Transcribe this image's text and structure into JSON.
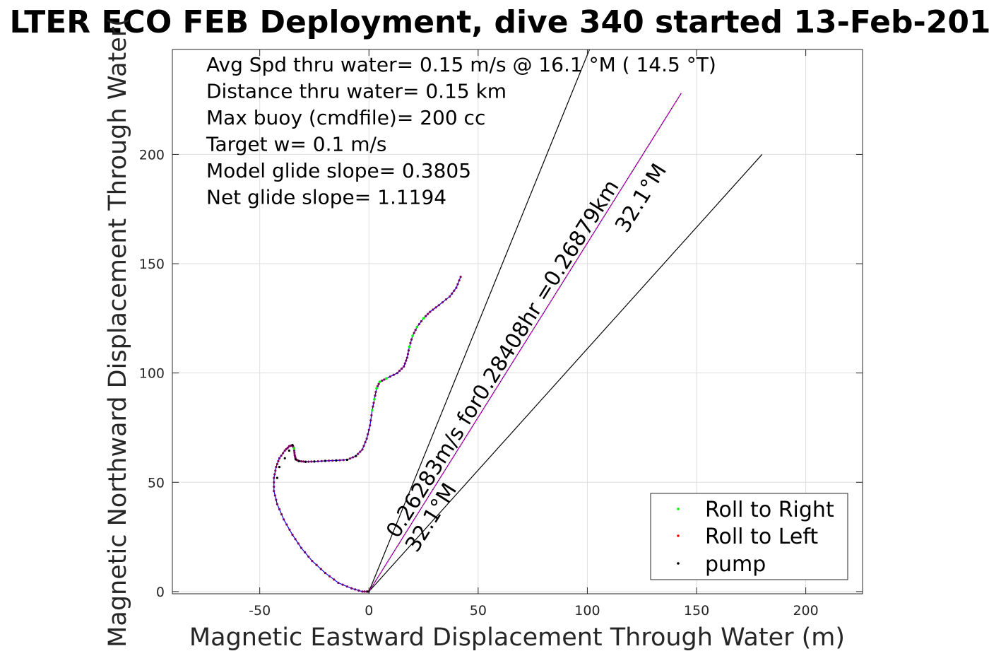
{
  "chart_data": {
    "type": "line",
    "title": "LTER ECO FEB Deployment, dive 340 started 13-Feb-201",
    "xlabel": "Magnetic Eastward Displacement Through Water (m)",
    "ylabel": "Magnetic Northward Displacement Through Water(",
    "xlim": [
      -90,
      226
    ],
    "ylim": [
      -1,
      248
    ],
    "x_ticks": [
      -50,
      0,
      50,
      100,
      150,
      200
    ],
    "y_ticks": [
      0,
      50,
      100,
      150,
      200
    ],
    "x_tick_labels": [
      "-50",
      "0",
      "50",
      "100",
      "150",
      "200"
    ],
    "y_tick_labels": [
      "0",
      "50",
      "100",
      "150",
      "200"
    ],
    "grid": true,
    "annotations": [
      "Avg Spd thru water=  0.15 m/s @  16.1 °M ( 14.5 °T)",
      "Distance thru water=  0.15 km",
      "Max buoy (cmdfile)= 200 cc",
      "Target w= 0.1 m/s",
      "Model glide slope= 0.3805",
      "Net glide slope= 1.1194"
    ],
    "current_label": "0.26283m/s for0.28408hr =0.26879km",
    "heading_label_upper": "32.1°M",
    "heading_label_lower": "32.1°M",
    "legend": {
      "position": "bottom-right",
      "entries": [
        {
          "name": "Roll to Right",
          "color": "#00ff00"
        },
        {
          "name": "Roll to Left",
          "color": "#ff0000"
        },
        {
          "name": "pump",
          "color": "#000000"
        }
      ]
    },
    "colors": {
      "track_line": "#0000ff",
      "track_points": "#7a0060",
      "current_vector": "#ff00ff",
      "cone_lines": "#000000",
      "roll_right": "#00ff00",
      "roll_left": "#ff0000",
      "pump": "#000000"
    },
    "cone_lines": [
      {
        "name": "cone-left",
        "x": [
          0,
          101
        ],
        "y": [
          0,
          248
        ]
      },
      {
        "name": "cone-center",
        "x": [
          0,
          143
        ],
        "y": [
          0,
          228
        ]
      },
      {
        "name": "cone-right",
        "x": [
          0,
          180
        ],
        "y": [
          0,
          200
        ]
      }
    ],
    "track": {
      "x": [
        0,
        -3,
        -8,
        -14,
        -20,
        -26,
        -31,
        -35,
        -39,
        -42,
        -43.5,
        -43.5,
        -42.5,
        -41,
        -38.5,
        -36.5,
        -35,
        -34.3,
        -34,
        -33.5,
        -32,
        -29,
        -25,
        -20,
        -15,
        -10,
        -6,
        -3,
        -1,
        0.5,
        1.5,
        2.5,
        3.5,
        5,
        8,
        13,
        16,
        17.5,
        18.5,
        20,
        22,
        25,
        28,
        32,
        37,
        40,
        42
      ],
      "y": [
        0,
        0,
        1.5,
        4,
        8.5,
        14,
        20,
        26,
        33,
        40,
        46,
        52,
        57,
        61,
        64.5,
        66.5,
        67,
        65.5,
        62.5,
        60.5,
        59.7,
        59.4,
        59.5,
        59.8,
        60,
        60.3,
        62,
        65,
        70,
        76,
        83,
        88,
        93,
        96,
        97.5,
        100,
        103,
        107,
        112,
        117,
        121,
        125,
        128,
        131,
        135,
        139,
        144
      ]
    },
    "roll_right_points": {
      "x": [
        -34.3,
        1.5,
        2.5,
        3.5,
        5,
        8,
        18.5,
        20,
        22,
        25
      ],
      "y": [
        65.5,
        83,
        88,
        93,
        96,
        97.5,
        112,
        117,
        121,
        125
      ]
    },
    "pump_points": {
      "x": [
        -42,
        -41,
        -38.5,
        -36.5,
        -35,
        -33.5,
        -32,
        -29,
        -25,
        -20,
        -15,
        -10,
        -6,
        -0.5
      ],
      "y": [
        52,
        57,
        61,
        64.5,
        67,
        60.5,
        59.7,
        59.4,
        59.5,
        59.8,
        60,
        60.3,
        62,
        0
      ]
    }
  }
}
